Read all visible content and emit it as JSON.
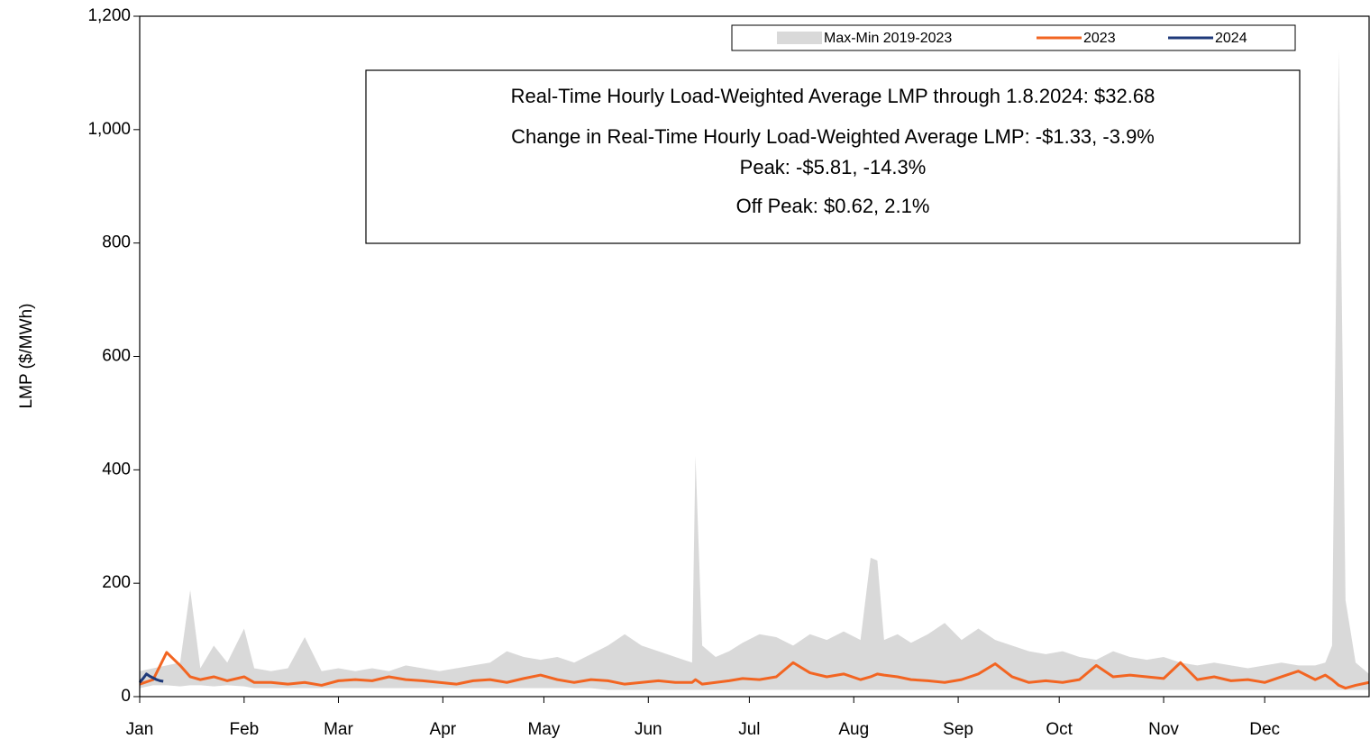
{
  "chart_data": {
    "type": "band-line",
    "y_label": "LMP ($/MWh)",
    "annotations": [
      "Real-Time Hourly Load-Weighted Average LMP through 1.8.2024: $32.68",
      "Change in Real-Time Hourly Load-Weighted Average LMP: -$1.33, -3.9%",
      "Peak: -$5.81, -14.3%",
      "Off Peak: $0.62, 2.1%"
    ],
    "xlim": [
      1,
      366
    ],
    "xticks": [
      {
        "value": 1,
        "label": "Jan"
      },
      {
        "value": 32,
        "label": "Feb"
      },
      {
        "value": 60,
        "label": "Mar"
      },
      {
        "value": 91,
        "label": "Apr"
      },
      {
        "value": 121,
        "label": "May"
      },
      {
        "value": 152,
        "label": "Jun"
      },
      {
        "value": 182,
        "label": "Jul"
      },
      {
        "value": 213,
        "label": "Aug"
      },
      {
        "value": 244,
        "label": "Sep"
      },
      {
        "value": 274,
        "label": "Oct"
      },
      {
        "value": 305,
        "label": "Nov"
      },
      {
        "value": 335,
        "label": "Dec"
      }
    ],
    "ylim": [
      0,
      1200
    ],
    "yticks": [
      0,
      200,
      400,
      600,
      800,
      {
        "value": 1000,
        "label": "1,000"
      },
      {
        "value": 1200,
        "label": "1,200"
      }
    ],
    "x": [
      1,
      5,
      9,
      13,
      16,
      19,
      23,
      27,
      32,
      35,
      40,
      45,
      50,
      55,
      60,
      65,
      70,
      75,
      80,
      85,
      90,
      95,
      100,
      105,
      110,
      115,
      120,
      125,
      130,
      135,
      140,
      145,
      150,
      155,
      160,
      165,
      166,
      168,
      172,
      176,
      180,
      185,
      190,
      195,
      200,
      205,
      210,
      215,
      218,
      220,
      222,
      226,
      230,
      235,
      240,
      245,
      250,
      255,
      260,
      265,
      270,
      275,
      280,
      285,
      290,
      295,
      300,
      305,
      310,
      315,
      320,
      325,
      330,
      335,
      340,
      345,
      350,
      353,
      355,
      357,
      359,
      362,
      366
    ],
    "band": {
      "name": "Max-Min 2019-2023",
      "color": "#d9d9d9",
      "high": [
        45,
        50,
        55,
        60,
        188,
        50,
        90,
        60,
        120,
        50,
        45,
        50,
        105,
        45,
        50,
        45,
        50,
        45,
        55,
        50,
        45,
        50,
        55,
        60,
        80,
        70,
        65,
        70,
        60,
        75,
        90,
        110,
        90,
        80,
        70,
        60,
        425,
        90,
        70,
        80,
        95,
        110,
        105,
        90,
        110,
        100,
        115,
        100,
        245,
        240,
        100,
        110,
        95,
        110,
        130,
        100,
        120,
        100,
        90,
        80,
        75,
        80,
        70,
        65,
        80,
        70,
        65,
        70,
        60,
        55,
        60,
        55,
        50,
        55,
        60,
        55,
        55,
        60,
        90,
        1140,
        170,
        60,
        40
      ],
      "low": [
        15,
        20,
        20,
        18,
        20,
        20,
        18,
        20,
        18,
        15,
        15,
        15,
        15,
        15,
        15,
        15,
        15,
        15,
        15,
        15,
        15,
        15,
        15,
        15,
        15,
        15,
        15,
        15,
        15,
        15,
        12,
        12,
        12,
        12,
        12,
        12,
        12,
        12,
        12,
        12,
        12,
        12,
        12,
        12,
        12,
        12,
        12,
        12,
        12,
        12,
        12,
        12,
        12,
        12,
        12,
        12,
        12,
        12,
        12,
        12,
        12,
        12,
        12,
        12,
        12,
        12,
        12,
        12,
        12,
        12,
        12,
        12,
        12,
        12,
        12,
        12,
        12,
        12,
        12,
        12,
        12,
        12,
        12
      ]
    },
    "series": [
      {
        "name": "2023",
        "color": "#f26522",
        "values": [
          22,
          30,
          78,
          55,
          35,
          30,
          35,
          28,
          35,
          25,
          25,
          22,
          25,
          20,
          28,
          30,
          28,
          35,
          30,
          28,
          25,
          22,
          28,
          30,
          25,
          32,
          38,
          30,
          25,
          30,
          28,
          22,
          25,
          28,
          25,
          25,
          30,
          22,
          25,
          28,
          32,
          30,
          35,
          60,
          42,
          35,
          40,
          30,
          35,
          40,
          38,
          35,
          30,
          28,
          25,
          30,
          40,
          58,
          35,
          25,
          28,
          25,
          30,
          55,
          35,
          38,
          35,
          32,
          60,
          30,
          35,
          28,
          30,
          25,
          35,
          45,
          30,
          38,
          30,
          20,
          15,
          20,
          25
        ]
      },
      {
        "name": "2024",
        "color": "#1f3a7a",
        "x": [
          1,
          2,
          3,
          4,
          5,
          6,
          7,
          8
        ],
        "values": [
          25,
          32,
          40,
          36,
          33,
          30,
          28,
          27
        ]
      }
    ]
  }
}
